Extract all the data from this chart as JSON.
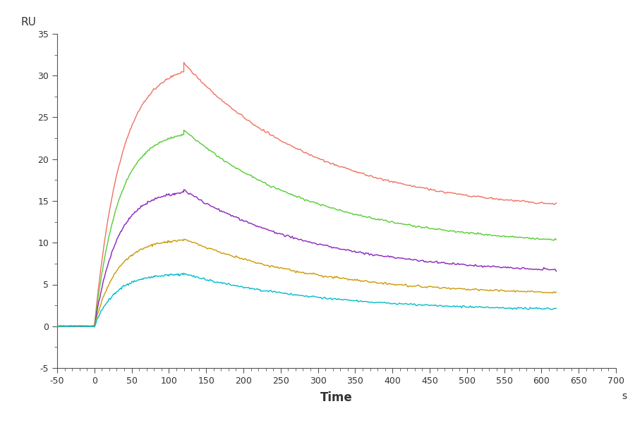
{
  "title": "",
  "xlabel": "Time",
  "ylabel": "RU",
  "xlabel_unit": "s",
  "xlim": [
    -50,
    700
  ],
  "ylim": [
    -5,
    35
  ],
  "xticks": [
    -50,
    0,
    50,
    100,
    150,
    200,
    250,
    300,
    350,
    400,
    450,
    500,
    550,
    600,
    650,
    700
  ],
  "yticks": [
    -5,
    0,
    5,
    10,
    15,
    20,
    25,
    30,
    35
  ],
  "background_color": "#ffffff",
  "curves": [
    {
      "color": "#f07060",
      "peak_x": 120,
      "peak_y": 31.5,
      "plateau_y": 13.5,
      "tau_assoc": 35,
      "tau_dissoc": 180
    },
    {
      "color": "#55cc33",
      "peak_x": 120,
      "peak_y": 23.5,
      "plateau_y": 9.5,
      "tau_assoc": 32,
      "tau_dissoc": 180
    },
    {
      "color": "#8822bb",
      "peak_x": 120,
      "peak_y": 16.3,
      "plateau_y": 6.1,
      "tau_assoc": 30,
      "tau_dissoc": 180
    },
    {
      "color": "#cc9900",
      "peak_x": 120,
      "peak_y": 10.5,
      "plateau_y": 3.6,
      "tau_assoc": 30,
      "tau_dissoc": 180
    },
    {
      "color": "#00bbcc",
      "peak_x": 120,
      "peak_y": 6.3,
      "plateau_y": 1.8,
      "tau_assoc": 28,
      "tau_dissoc": 180
    }
  ]
}
